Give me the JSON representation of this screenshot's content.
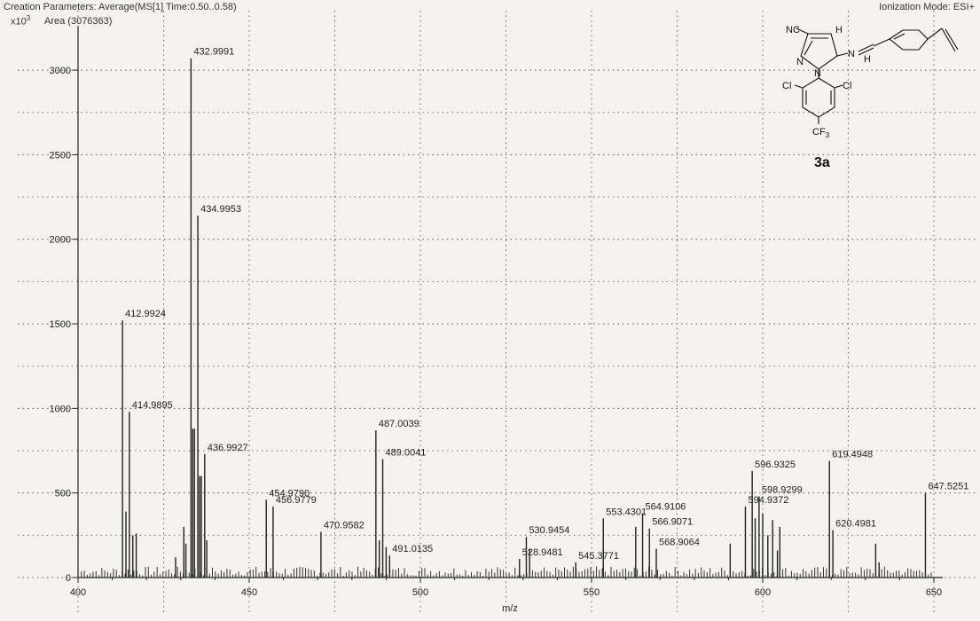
{
  "header": {
    "params": "Creation Parameters: Average(MS[1] Time:0.50..0.58)",
    "mode": "Ionization Mode: ESI+",
    "yscale": "x10",
    "yscale_exp": "3",
    "area": "Area (3076363)"
  },
  "compound": {
    "label": "3a",
    "atoms": [
      "NC",
      "H",
      "N",
      "N",
      "N",
      "Cl",
      "Cl",
      "CF",
      "3",
      "H"
    ]
  },
  "chart_data": {
    "type": "bar",
    "xlabel": "m/z",
    "ylabel": "",
    "xlim": [
      400,
      650
    ],
    "ylim": [
      0,
      3100
    ],
    "xticks": [
      400,
      450,
      500,
      550,
      600,
      650
    ],
    "yticks": [
      0,
      500,
      1000,
      1500,
      2000,
      2500,
      3000
    ],
    "grid": true,
    "color": "#222222",
    "peaks": [
      {
        "mz": 412.9924,
        "intensity": 1520,
        "label": "412.9924"
      },
      {
        "mz": 413.99,
        "intensity": 390
      },
      {
        "mz": 414.9895,
        "intensity": 980,
        "label": "414.9895"
      },
      {
        "mz": 415.99,
        "intensity": 250
      },
      {
        "mz": 416.99,
        "intensity": 260
      },
      {
        "mz": 428.5,
        "intensity": 120
      },
      {
        "mz": 430.9,
        "intensity": 300
      },
      {
        "mz": 431.5,
        "intensity": 200
      },
      {
        "mz": 432.9991,
        "intensity": 3070,
        "label": "432.9991"
      },
      {
        "mz": 433.5,
        "intensity": 880
      },
      {
        "mz": 434.0,
        "intensity": 880
      },
      {
        "mz": 434.9953,
        "intensity": 2140,
        "label": "434.9953"
      },
      {
        "mz": 435.5,
        "intensity": 600
      },
      {
        "mz": 436.0,
        "intensity": 600
      },
      {
        "mz": 436.9927,
        "intensity": 730,
        "label": "436.9927"
      },
      {
        "mz": 437.6,
        "intensity": 220
      },
      {
        "mz": 454.979,
        "intensity": 460,
        "label": "454.9790"
      },
      {
        "mz": 456.9779,
        "intensity": 420,
        "label": "456.9779"
      },
      {
        "mz": 470.9582,
        "intensity": 270,
        "label": "470.9582"
      },
      {
        "mz": 487.0039,
        "intensity": 870,
        "label": "487.0039"
      },
      {
        "mz": 488.0,
        "intensity": 220
      },
      {
        "mz": 489.0041,
        "intensity": 700,
        "label": "489.0041"
      },
      {
        "mz": 490.0,
        "intensity": 180
      },
      {
        "mz": 491.0135,
        "intensity": 130,
        "label": "491.0135"
      },
      {
        "mz": 528.9481,
        "intensity": 110,
        "label": "528.9481"
      },
      {
        "mz": 530.9454,
        "intensity": 240,
        "label": "530.9454"
      },
      {
        "mz": 531.9,
        "intensity": 170
      },
      {
        "mz": 545.3771,
        "intensity": 90,
        "label": "545.3771"
      },
      {
        "mz": 553.4301,
        "intensity": 350,
        "label": "553.4301"
      },
      {
        "mz": 562.9,
        "intensity": 300
      },
      {
        "mz": 564.9106,
        "intensity": 380,
        "label": "564.9106"
      },
      {
        "mz": 566.9071,
        "intensity": 290,
        "label": "566.9071"
      },
      {
        "mz": 568.9064,
        "intensity": 170,
        "label": "568.9064"
      },
      {
        "mz": 590.5,
        "intensity": 200
      },
      {
        "mz": 594.9372,
        "intensity": 420,
        "label": "594.9372"
      },
      {
        "mz": 596.9325,
        "intensity": 630,
        "label": "596.9325"
      },
      {
        "mz": 597.8,
        "intensity": 350
      },
      {
        "mz": 598.9299,
        "intensity": 480,
        "label": "598.9299"
      },
      {
        "mz": 600.0,
        "intensity": 380
      },
      {
        "mz": 601.5,
        "intensity": 250
      },
      {
        "mz": 602.9,
        "intensity": 340
      },
      {
        "mz": 604.3,
        "intensity": 160
      },
      {
        "mz": 605.0,
        "intensity": 300
      },
      {
        "mz": 619.4948,
        "intensity": 690,
        "label": "619.4948"
      },
      {
        "mz": 620.4981,
        "intensity": 280,
        "label": "620.4981"
      },
      {
        "mz": 633.0,
        "intensity": 200
      },
      {
        "mz": 634.0,
        "intensity": 90
      },
      {
        "mz": 647.5251,
        "intensity": 500,
        "label": "647.5251"
      }
    ]
  }
}
